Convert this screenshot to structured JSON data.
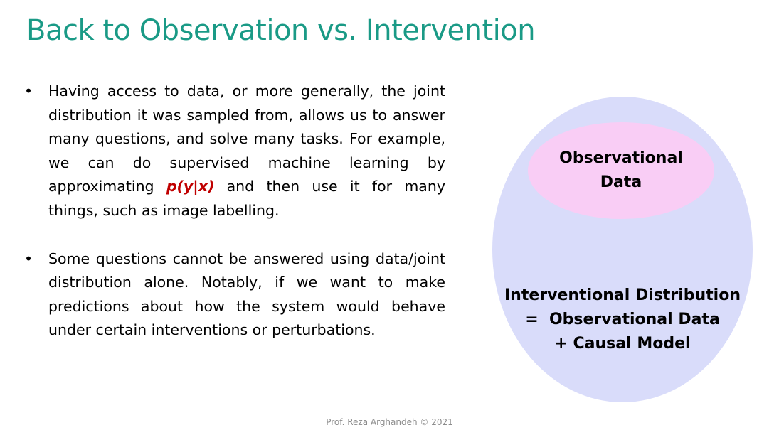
{
  "slide": {
    "title": "Back to Observation vs. Intervention",
    "bullets": [
      {
        "marker": "•",
        "text_before": "Having access to data, or more generally, the joint distribution it was sampled from, allows us to answer many questions, and solve many tasks. For example, we can do supervised machine learning by approximating ",
        "highlight": "p(y|x)",
        "text_after": " and then use it for many things, such as image labelling."
      },
      {
        "marker": "•",
        "text_before": "Some questions cannot be answered using data/joint distribution alone. Notably, if we want to make predictions about how the system would behave under certain interventions or perturbations.",
        "highlight": "",
        "text_after": ""
      }
    ],
    "diagram": {
      "inner_label_line1": "Observational",
      "inner_label_line2": "Data",
      "outer_label_line1": "Interventional Distribution",
      "outer_label_line2": "=  Observational Data",
      "outer_label_line3": "+ Causal Model"
    },
    "footer": "Prof. Reza Arghandeh © 2021"
  },
  "colors": {
    "title": "#1a9a86",
    "highlight": "#c00000",
    "outer_ellipse": "#d9dcfa",
    "inner_ellipse": "#f9cdf5",
    "footer": "#8c8c8c"
  }
}
